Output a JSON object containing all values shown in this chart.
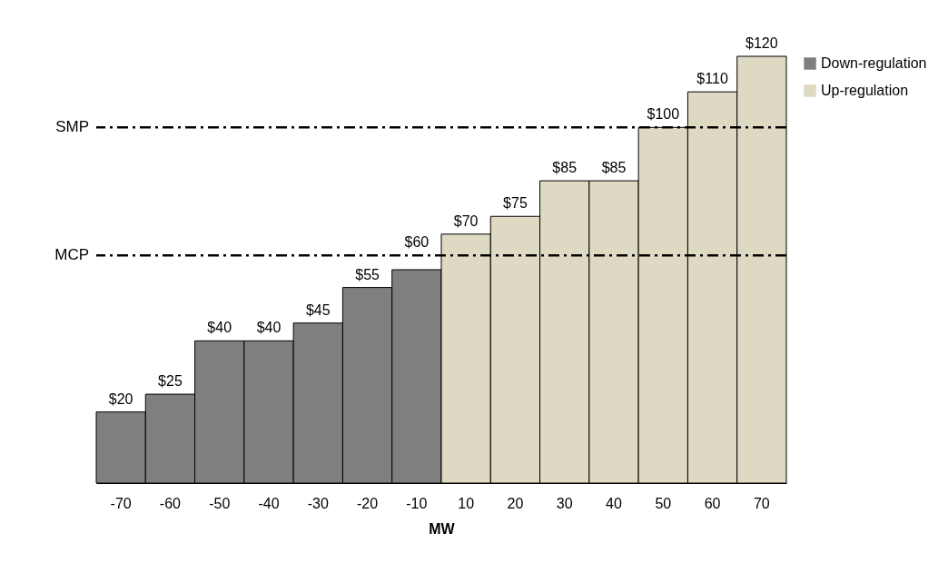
{
  "chart_data": {
    "type": "bar",
    "xlabel": "MW",
    "categories": [
      "-70",
      "-60",
      "-50",
      "-40",
      "-30",
      "-20",
      "-10",
      "10",
      "20",
      "30",
      "40",
      "50",
      "60",
      "70"
    ],
    "series": [
      {
        "name": "Down-regulation",
        "color": "#7f7f7f",
        "values": [
          20,
          25,
          40,
          40,
          45,
          55,
          60,
          null,
          null,
          null,
          null,
          null,
          null,
          null
        ],
        "value_labels": [
          "$20",
          "$25",
          "$40",
          "$40",
          "$45",
          "$55",
          "$60",
          null,
          null,
          null,
          null,
          null,
          null,
          null
        ]
      },
      {
        "name": "Up-regulation",
        "color": "#ddd9c3",
        "values": [
          null,
          null,
          null,
          null,
          null,
          null,
          null,
          70,
          75,
          85,
          85,
          100,
          110,
          120
        ],
        "value_labels": [
          null,
          null,
          null,
          null,
          null,
          null,
          null,
          "$70",
          "$75",
          "$85",
          "$85",
          "$100",
          "$110",
          "$120"
        ]
      }
    ],
    "tick_labels": "x",
    "grid": false,
    "legend": "right",
    "ref_lines": [
      {
        "axis": "y",
        "value": 64,
        "label": "MCP",
        "line_style": "dashed"
      },
      {
        "axis": "y",
        "value": 100,
        "label": "SMP",
        "line_style": "dashed"
      }
    ]
  }
}
